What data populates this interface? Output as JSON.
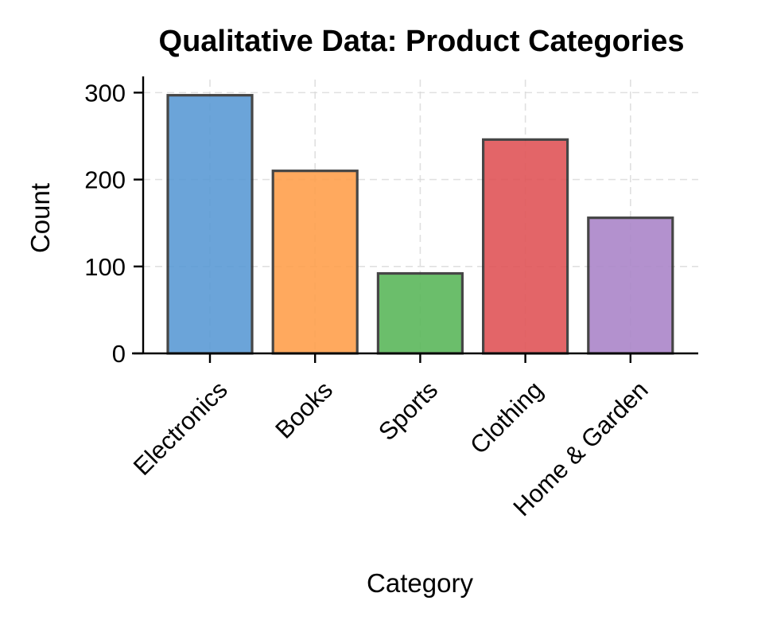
{
  "chart_data": {
    "type": "bar",
    "title": "Qualitative Data: Product Categories",
    "xlabel": "Category",
    "ylabel": "Count",
    "categories": [
      "Electronics",
      "Books",
      "Sports",
      "Clothing",
      "Home & Garden"
    ],
    "values": [
      297,
      210,
      92,
      246,
      156
    ],
    "colors": [
      "#5b9bd5",
      "#ffa04d",
      "#5cb85c",
      "#e05558",
      "#ab86c9"
    ],
    "ylim": [
      0,
      315
    ],
    "yticks": [
      0,
      100,
      200,
      300
    ],
    "grid": true,
    "legend": "none"
  }
}
